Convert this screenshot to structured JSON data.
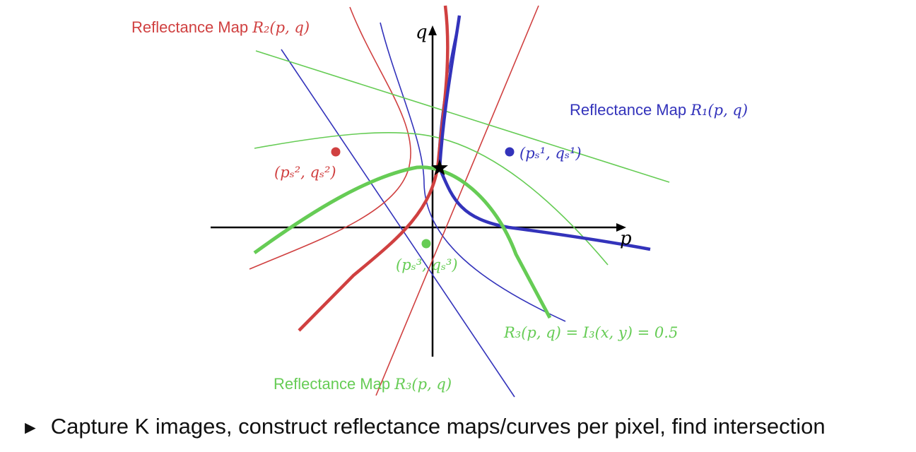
{
  "colors": {
    "red": "#d04040",
    "blue": "#3333bb",
    "green": "#66cc55",
    "axis": "#000000"
  },
  "labels": {
    "map_r2_prefix": "Reflectance Map ",
    "map_r2_math": "R₂(p, q)",
    "map_r1_prefix": "Reflectance Map ",
    "map_r1_math": "R₁(p, q)",
    "map_r3_prefix": "Reflectance Map ",
    "map_r3_math": "R₃(p, q)",
    "axis_p": "p",
    "axis_q": "q",
    "source1": "(pₛ¹, qₛ¹)",
    "source2": "(pₛ², qₛ²)",
    "source3": "(pₛ³, qₛ³)",
    "iso_curve_eq": "R₃(p, q) = I₃(x, y) = 0.5"
  },
  "markers": {
    "intersection_icon": "star-icon",
    "source_icon": "dot-icon"
  },
  "bullet": {
    "marker": "►",
    "text": "Capture K images, construct reflectance maps/curves per pixel, find intersection"
  }
}
